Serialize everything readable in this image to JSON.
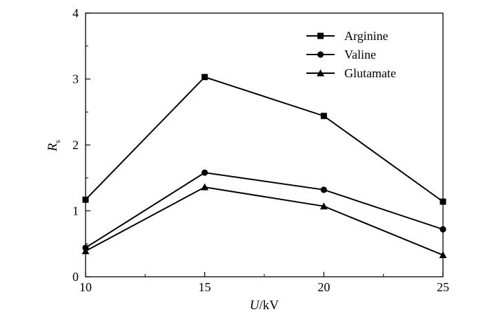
{
  "chart_data": {
    "type": "line",
    "title": "",
    "xlabel": "U/kV",
    "xlabel_parts": {
      "var": "U",
      "unit": "/kV"
    },
    "ylabel": "Rs",
    "ylabel_parts": {
      "var": "R",
      "sub": "s"
    },
    "x": [
      10,
      15,
      20,
      25
    ],
    "x_ticks": [
      "10",
      "15",
      "20",
      "25"
    ],
    "xlim": [
      10,
      25
    ],
    "ylim": [
      0,
      4
    ],
    "y_ticks": [
      "0",
      "1",
      "2",
      "3",
      "4"
    ],
    "grid": false,
    "legend_position": "top-right",
    "series": [
      {
        "name": "Arginine",
        "marker": "square",
        "values": [
          1.17,
          3.03,
          2.44,
          1.14
        ]
      },
      {
        "name": "Valine",
        "marker": "circle",
        "values": [
          0.44,
          1.58,
          1.32,
          0.72
        ]
      },
      {
        "name": "Glutamate",
        "marker": "triangle",
        "values": [
          0.39,
          1.36,
          1.07,
          0.33
        ]
      }
    ]
  }
}
